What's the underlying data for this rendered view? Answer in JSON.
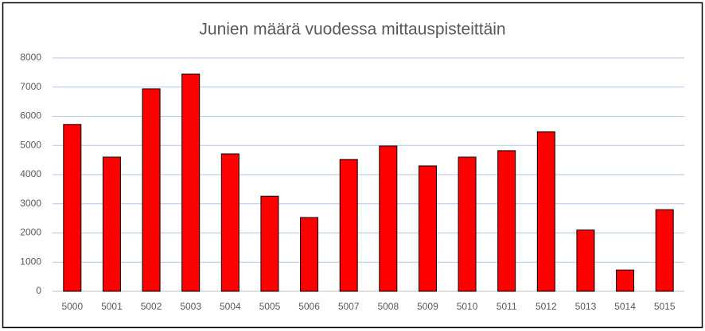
{
  "chart_data": {
    "type": "bar",
    "title": "Junien määrä vuodessa mittauspisteittäin",
    "categories": [
      "5000",
      "5001",
      "5002",
      "5003",
      "5004",
      "5005",
      "5006",
      "5007",
      "5008",
      "5009",
      "5010",
      "5011",
      "5012",
      "5013",
      "5014",
      "5015"
    ],
    "values": [
      5720,
      4600,
      6940,
      7450,
      4710,
      3260,
      2530,
      4520,
      4980,
      4300,
      4600,
      4820,
      5470,
      2100,
      730,
      2800
    ],
    "color": "#ff0000",
    "ylim": [
      0,
      8000
    ],
    "yticks": [
      0,
      1000,
      2000,
      3000,
      4000,
      5000,
      6000,
      7000,
      8000
    ],
    "grid": true
  }
}
